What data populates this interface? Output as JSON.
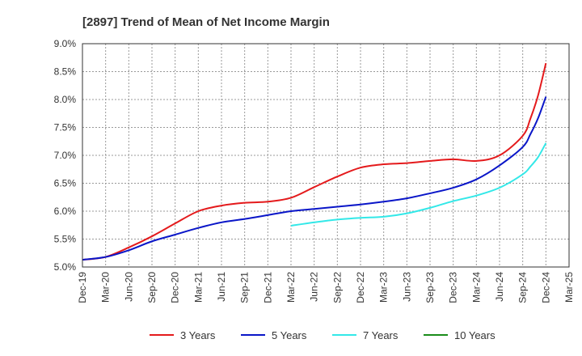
{
  "chart_data": {
    "type": "line",
    "title": "[2897]  Trend of Mean of Net Income Margin",
    "xlabel": "",
    "ylabel": "",
    "ylim": [
      5.0,
      9.0
    ],
    "y_ticks": [
      "5.0%",
      "5.5%",
      "6.0%",
      "6.5%",
      "7.0%",
      "7.5%",
      "8.0%",
      "8.5%",
      "9.0%"
    ],
    "y_tick_values": [
      5.0,
      5.5,
      6.0,
      6.5,
      7.0,
      7.5,
      8.0,
      8.5,
      9.0
    ],
    "x_ticks": [
      "Dec-19",
      "Mar-20",
      "Jun-20",
      "Sep-20",
      "Dec-20",
      "Mar-21",
      "Jun-21",
      "Sep-21",
      "Dec-21",
      "Mar-22",
      "Jun-22",
      "Sep-22",
      "Dec-22",
      "Mar-23",
      "Jun-23",
      "Sep-23",
      "Dec-23",
      "Mar-24",
      "Jun-24",
      "Sep-24",
      "Dec-24",
      "Mar-25"
    ],
    "grid": true,
    "legend_position": "bottom",
    "series": [
      {
        "name": "3 Years",
        "color": "#e41a1c",
        "x": [
          "Dec-19",
          "Mar-20",
          "Jun-20",
          "Sep-20",
          "Dec-20",
          "Mar-21",
          "Jun-21",
          "Sep-21",
          "Dec-21",
          "Mar-22",
          "Jun-22",
          "Sep-22",
          "Dec-22",
          "Mar-23",
          "Jun-23",
          "Sep-23",
          "Dec-23",
          "Mar-24",
          "Jun-24",
          "Sep-24",
          "Oct-24",
          "Nov-24",
          "Dec-24"
        ],
        "values": [
          5.13,
          5.18,
          5.35,
          5.55,
          5.78,
          6.0,
          6.1,
          6.15,
          6.17,
          6.24,
          6.43,
          6.62,
          6.78,
          6.84,
          6.86,
          6.9,
          6.93,
          6.9,
          7.0,
          7.35,
          7.66,
          8.08,
          8.65
        ]
      },
      {
        "name": "5 Years",
        "color": "#0a16c8",
        "x": [
          "Dec-19",
          "Mar-20",
          "Jun-20",
          "Sep-20",
          "Dec-20",
          "Mar-21",
          "Jun-21",
          "Sep-21",
          "Dec-21",
          "Mar-22",
          "Jun-22",
          "Sep-22",
          "Dec-22",
          "Mar-23",
          "Jun-23",
          "Sep-23",
          "Dec-23",
          "Mar-24",
          "Jun-24",
          "Sep-24",
          "Oct-24",
          "Nov-24",
          "Dec-24"
        ],
        "values": [
          5.13,
          5.18,
          5.3,
          5.46,
          5.58,
          5.7,
          5.8,
          5.86,
          5.93,
          6.0,
          6.04,
          6.08,
          6.12,
          6.17,
          6.23,
          6.32,
          6.42,
          6.57,
          6.82,
          7.15,
          7.38,
          7.67,
          8.05
        ]
      },
      {
        "name": "7 Years",
        "color": "#33e8e8",
        "x": [
          "Mar-22",
          "Jun-22",
          "Sep-22",
          "Dec-22",
          "Mar-23",
          "Jun-23",
          "Sep-23",
          "Dec-23",
          "Mar-24",
          "Jun-24",
          "Sep-24",
          "Oct-24",
          "Nov-24",
          "Dec-24"
        ],
        "values": [
          5.74,
          5.8,
          5.85,
          5.88,
          5.9,
          5.96,
          6.06,
          6.18,
          6.28,
          6.42,
          6.66,
          6.8,
          6.97,
          7.22
        ]
      },
      {
        "name": "10 Years",
        "color": "#1a8c1a",
        "x": [],
        "values": []
      }
    ]
  }
}
